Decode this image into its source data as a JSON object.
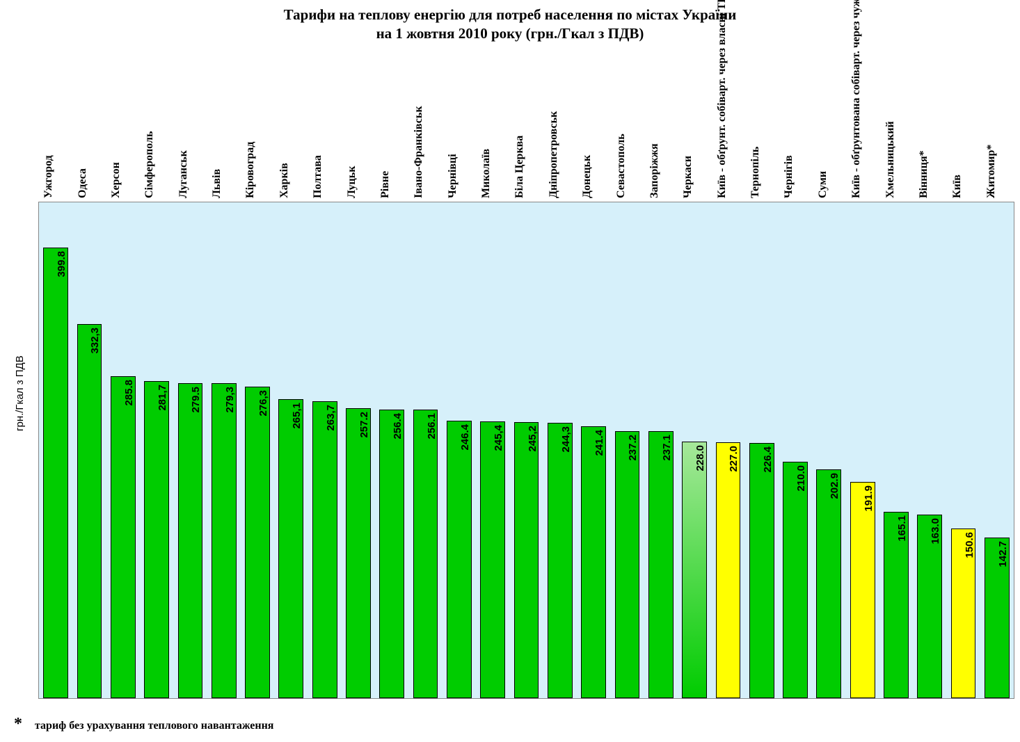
{
  "chart": {
    "type": "bar",
    "title_line1": "Тарифи на теплову енергію для потреб населення по містах України",
    "title_line2": "на 1 жовтня 2010 року (грн./Гкал з ПДВ)",
    "title_fontsize": 21,
    "yaxis_label": "грн./Гкал з ПДВ",
    "ymax": 440,
    "background_color": "#d6f0fa",
    "plot_border_color": "#888888",
    "bar_border_color": "#000000",
    "grid": false,
    "bar_width_ratio": 0.74,
    "label_fontsize": 16,
    "value_fontsize": 15,
    "colors": {
      "green": "#00cc00",
      "green_gradient_light": "#a6e89a",
      "yellow": "#ffff00"
    },
    "bars": [
      {
        "label": "Ужгород",
        "value": 399.8,
        "display": "399.8",
        "fill": "green",
        "bold_label": false
      },
      {
        "label": "Одеса",
        "value": 332.3,
        "display": "332,3",
        "fill": "green",
        "bold_label": false
      },
      {
        "label": "Херсон",
        "value": 285.8,
        "display": "285.8",
        "fill": "green",
        "bold_label": false
      },
      {
        "label": "Сімферополь",
        "value": 281.7,
        "display": "281,7",
        "fill": "green",
        "bold_label": false
      },
      {
        "label": "Луганськ",
        "value": 279.5,
        "display": "279.5",
        "fill": "green",
        "bold_label": false
      },
      {
        "label": "Львів",
        "value": 279.3,
        "display": "279,3",
        "fill": "green",
        "bold_label": false
      },
      {
        "label": "Кіровоград",
        "value": 276.3,
        "display": "276,3",
        "fill": "green",
        "bold_label": false
      },
      {
        "label": "Харків",
        "value": 265.1,
        "display": "265,1",
        "fill": "green",
        "bold_label": false
      },
      {
        "label": "Полтава",
        "value": 263.7,
        "display": "263,7",
        "fill": "green",
        "bold_label": false
      },
      {
        "label": "Луцьк",
        "value": 257.2,
        "display": "257.2",
        "fill": "green",
        "bold_label": false
      },
      {
        "label": "Рівне",
        "value": 256.4,
        "display": "256.4",
        "fill": "green",
        "bold_label": false
      },
      {
        "label": "Івано-Франківськ",
        "value": 256.1,
        "display": "256.1",
        "fill": "green",
        "bold_label": false
      },
      {
        "label": "Чернівці",
        "value": 246.4,
        "display": "246.4",
        "fill": "green",
        "bold_label": false
      },
      {
        "label": "Миколаїв",
        "value": 245.4,
        "display": "245,4",
        "fill": "green",
        "bold_label": false
      },
      {
        "label": "Біла Церква",
        "value": 245.2,
        "display": "245,2",
        "fill": "green",
        "bold_label": false
      },
      {
        "label": "Дніпропетровськ",
        "value": 244.3,
        "display": "244,3",
        "fill": "green",
        "bold_label": false
      },
      {
        "label": "Донецьк",
        "value": 241.4,
        "display": "241.4",
        "fill": "green",
        "bold_label": false
      },
      {
        "label": "Севастополь",
        "value": 237.2,
        "display": "237.2",
        "fill": "green",
        "bold_label": false
      },
      {
        "label": "Запоріжжя",
        "value": 237.1,
        "display": "237.1",
        "fill": "green",
        "bold_label": false
      },
      {
        "label": "Черкаси",
        "value": 228.0,
        "display": "228.0",
        "fill": "green_gradient",
        "bold_label": false
      },
      {
        "label": "Київ - обґрунт. собіварт. через власні ТП",
        "value": 227.0,
        "display": "227.0",
        "fill": "yellow",
        "bold_label": true
      },
      {
        "label": "Тернопіль",
        "value": 226.4,
        "display": "226.4",
        "fill": "green",
        "bold_label": false
      },
      {
        "label": "Чернігів",
        "value": 210.0,
        "display": "210.0",
        "fill": "green",
        "bold_label": false
      },
      {
        "label": "Суми",
        "value": 202.9,
        "display": "202.9",
        "fill": "green",
        "bold_label": false
      },
      {
        "label": "Київ - обґрунтована собіварт. через чужі ТП",
        "value": 191.9,
        "display": "191.9",
        "fill": "yellow",
        "bold_label": true
      },
      {
        "label": "Хмельницький",
        "value": 165.1,
        "display": "165.1",
        "fill": "green",
        "bold_label": false
      },
      {
        "label": "Вінниця*",
        "value": 163.0,
        "display": "163.0",
        "fill": "green",
        "bold_label": false
      },
      {
        "label": "Київ",
        "value": 150.6,
        "display": "150.6",
        "fill": "yellow",
        "bold_label": false
      },
      {
        "label": "Житомир*",
        "value": 142.7,
        "display": "142.7",
        "fill": "green",
        "bold_label": false
      }
    ],
    "footnote_star": "*",
    "footnote_text": "тариф без урахування теплового навантаження"
  }
}
